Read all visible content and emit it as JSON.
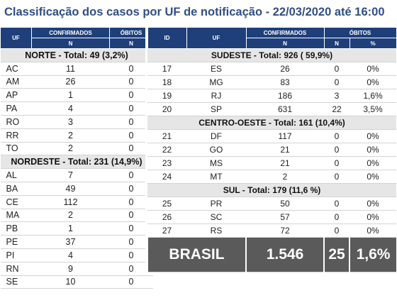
{
  "title": "Classificação dos casos por UF de notificação - 22/03/2020 até 16:00",
  "left_table": {
    "headers": [
      "UF",
      "CONFIRMADOS",
      "ÓBITOS"
    ],
    "subheaders": [
      "N",
      "N"
    ],
    "regions": [
      {
        "label": "NORTE - Total: 49 (3,2%)",
        "rows": [
          [
            "AC",
            "11",
            "0"
          ],
          [
            "AM",
            "26",
            "0"
          ],
          [
            "AP",
            "1",
            "0"
          ],
          [
            "PA",
            "4",
            "0"
          ],
          [
            "RO",
            "3",
            "0"
          ],
          [
            "RR",
            "2",
            "0"
          ],
          [
            "TO",
            "2",
            "0"
          ]
        ]
      },
      {
        "label": "NORDESTE - Total: 231 (14,9%)",
        "rows": [
          [
            "AL",
            "7",
            "0"
          ],
          [
            "BA",
            "49",
            "0"
          ],
          [
            "CE",
            "112",
            "0"
          ],
          [
            "MA",
            "2",
            "0"
          ],
          [
            "PB",
            "1",
            "0"
          ],
          [
            "PE",
            "37",
            "0"
          ],
          [
            "PI",
            "4",
            "0"
          ],
          [
            "RN",
            "9",
            "0"
          ],
          [
            "SE",
            "10",
            "0"
          ]
        ]
      }
    ]
  },
  "right_table": {
    "headers": [
      "ID",
      "UF",
      "CONFIRMADOS",
      "ÓBITOS"
    ],
    "subheaders": [
      "N",
      "N",
      "%"
    ],
    "regions": [
      {
        "label": "SUDESTE - Total: 926 ( 59,9%)",
        "rows": [
          [
            "17",
            "ES",
            "26",
            "0",
            "0%"
          ],
          [
            "18",
            "MG",
            "83",
            "0",
            "0%"
          ],
          [
            "19",
            "RJ",
            "186",
            "3",
            "1,6%"
          ],
          [
            "20",
            "SP",
            "631",
            "22",
            "3,5%"
          ]
        ]
      },
      {
        "label": "CENTRO-OESTE - Total: 161 (10,4%)",
        "rows": [
          [
            "21",
            "DF",
            "117",
            "0",
            "0%"
          ],
          [
            "22",
            "GO",
            "21",
            "0",
            "0%"
          ],
          [
            "23",
            "MS",
            "21",
            "0",
            "0%"
          ],
          [
            "24",
            "MT",
            "2",
            "0",
            "0%"
          ]
        ]
      },
      {
        "label": "SUL - Total: 179 (11,6 %)",
        "rows": [
          [
            "25",
            "PR",
            "50",
            "0",
            "0%"
          ],
          [
            "26",
            "SC",
            "57",
            "0",
            "0%"
          ],
          [
            "27",
            "RS",
            "72",
            "0",
            "0%"
          ]
        ]
      }
    ],
    "total": [
      "BRASIL",
      "1.546",
      "25",
      "1,6%"
    ]
  }
}
